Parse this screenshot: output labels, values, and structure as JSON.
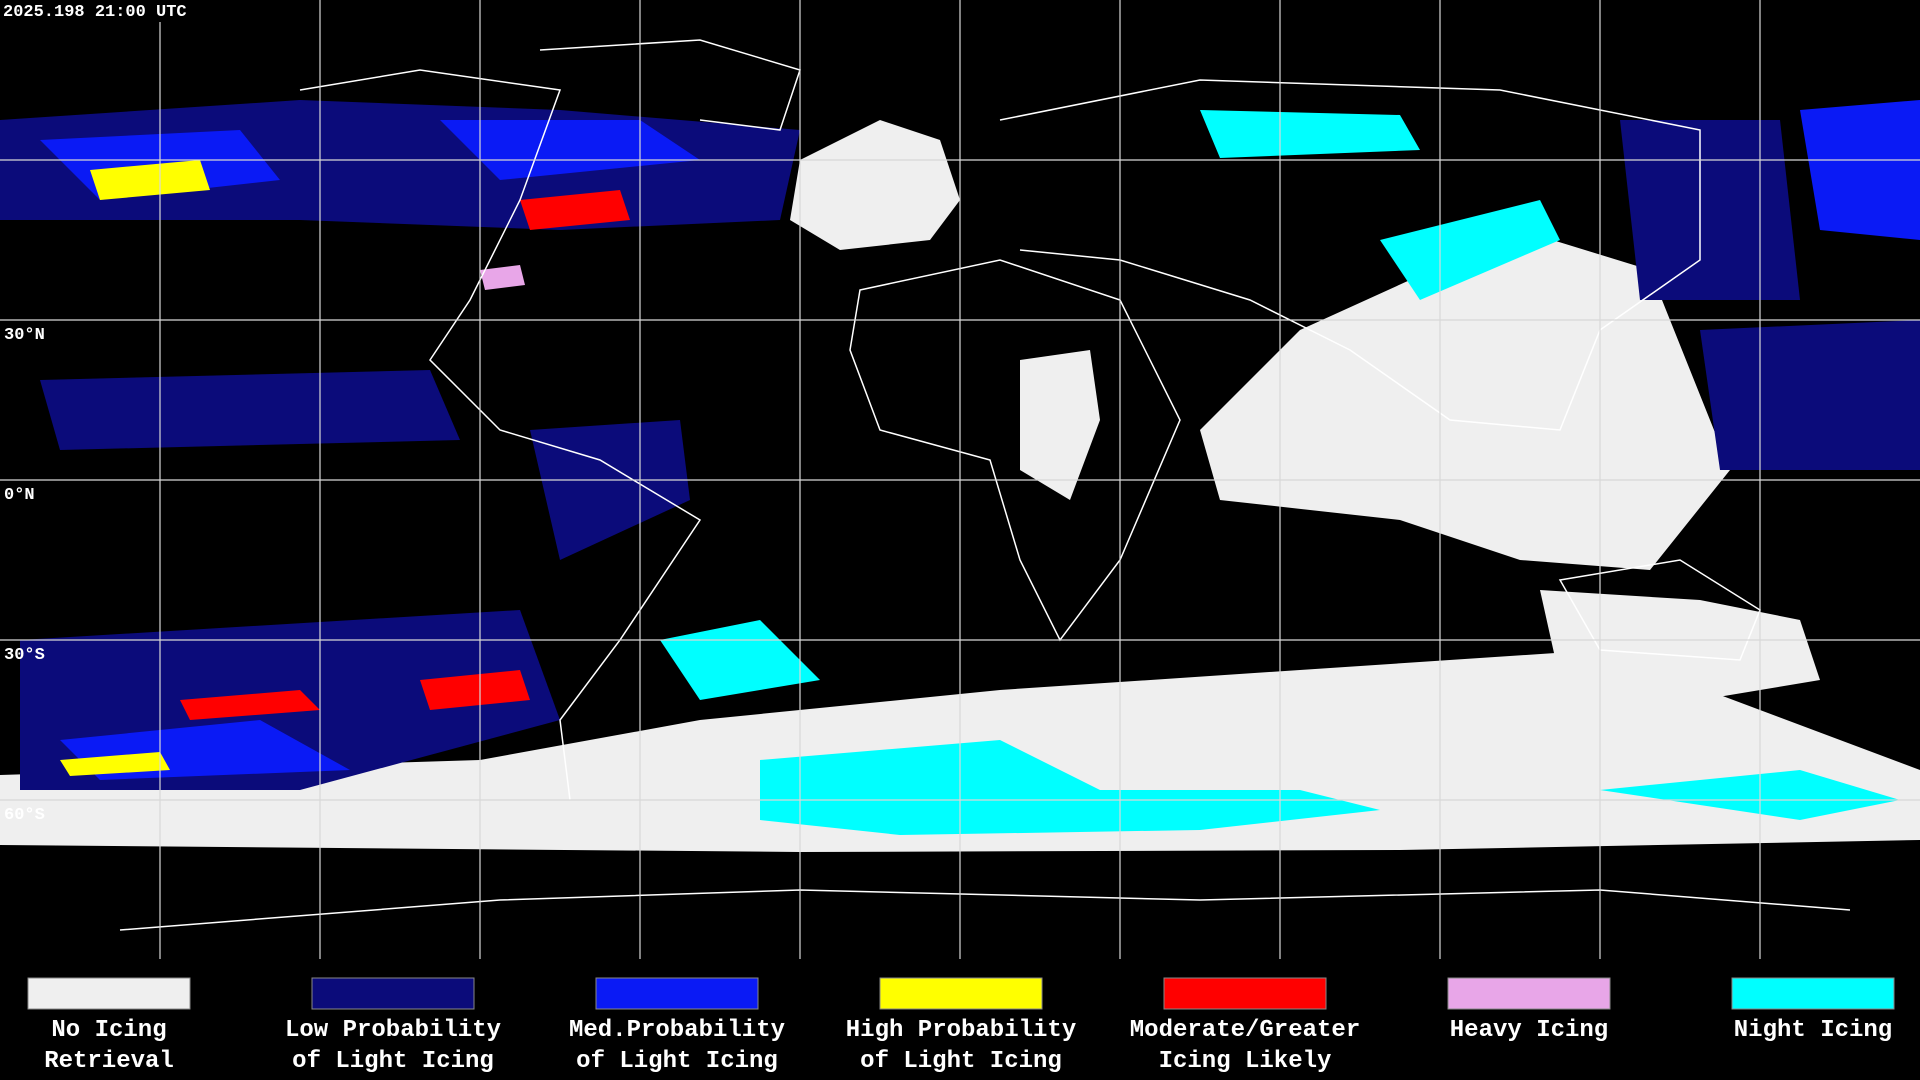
{
  "header": {
    "timestamp": "2025.198 21:00 UTC"
  },
  "map": {
    "latitude_labels": [
      "30°N",
      "0°N",
      "30°S",
      "60°S"
    ]
  },
  "legend": {
    "items": [
      {
        "lines": [
          "No Icing",
          "Retrieval"
        ],
        "color": "#efefef"
      },
      {
        "lines": [
          "Low Probability",
          "of Light Icing"
        ],
        "color": "#0b0b7a"
      },
      {
        "lines": [
          "Med.Probability",
          "of Light Icing"
        ],
        "color": "#0a1af5"
      },
      {
        "lines": [
          "High Probability",
          "of Light Icing"
        ],
        "color": "#ffff00"
      },
      {
        "lines": [
          "Moderate/Greater",
          "Icing Likely"
        ],
        "color": "#ff0000"
      },
      {
        "lines": [
          "Heavy Icing"
        ],
        "color": "#e8a6e8"
      },
      {
        "lines": [
          "Night Icing"
        ],
        "color": "#00ffff"
      }
    ]
  }
}
